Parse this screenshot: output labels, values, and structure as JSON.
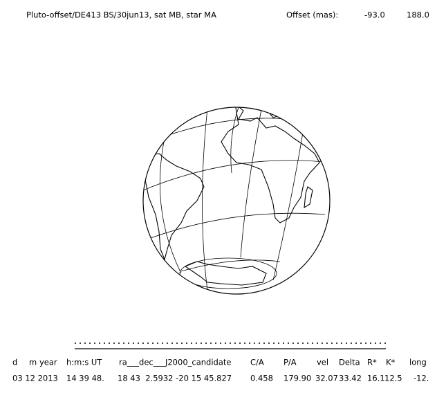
{
  "header": {
    "title": "Pluto-offset/DE413 BS/30jun13, sat MB, star MA",
    "offset_label": "Offset (mas):",
    "offset_values": [
      "-93.0",
      "188.0"
    ]
  },
  "table": {
    "headers": [
      "d",
      "m",
      "year",
      "h:m:s UT",
      "ra___dec___J2000_candidate",
      "C/A",
      "P/A",
      "vel",
      "Delta",
      "R*",
      "K*",
      "long"
    ],
    "rows": [
      [
        "03 12 2013",
        "14 39 48.",
        "18 43  2.5932 -20 15 45.827",
        "0.458",
        "179.90",
        "32.07",
        "33.42",
        "16.1",
        "12.5",
        "-12."
      ]
    ]
  }
}
